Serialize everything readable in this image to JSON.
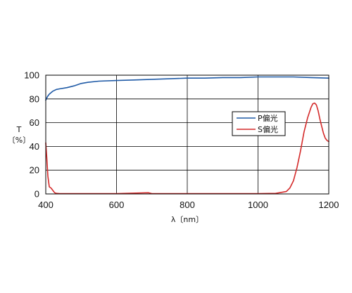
{
  "chart_data": {
    "type": "line",
    "title": "",
    "xlabel": "λ〔nm〕",
    "ylabel": [
      "T",
      "〔%〕"
    ],
    "xlim": [
      400,
      1200
    ],
    "ylim": [
      0,
      100
    ],
    "xticks": [
      400,
      600,
      800,
      1000,
      1200
    ],
    "yticks": [
      0,
      20,
      40,
      60,
      80,
      100
    ],
    "grid": true,
    "legend_position": "right",
    "series": [
      {
        "name": "P偏光",
        "color": "#1f5aa6",
        "x": [
          400,
          405,
          410,
          420,
          430,
          440,
          460,
          480,
          500,
          520,
          550,
          600,
          650,
          700,
          750,
          800,
          850,
          900,
          950,
          1000,
          1050,
          1100,
          1150,
          1200
        ],
        "y": [
          79,
          82,
          84,
          86.5,
          88,
          88.5,
          89.5,
          91,
          93,
          94,
          95,
          95.5,
          96,
          96.5,
          97,
          97.5,
          97.5,
          98,
          98,
          98.5,
          98.5,
          98.5,
          98,
          97.5
        ]
      },
      {
        "name": "S偏光",
        "color": "#d42a2a",
        "x": [
          400,
          403,
          406,
          410,
          415,
          420,
          425,
          430,
          440,
          450,
          500,
          600,
          690,
          700,
          800,
          900,
          1000,
          1050,
          1080,
          1090,
          1100,
          1110,
          1120,
          1130,
          1140,
          1150,
          1155,
          1160,
          1165,
          1170,
          1175,
          1180,
          1185,
          1190,
          1195,
          1200
        ],
        "y": [
          43,
          30,
          15,
          6,
          5,
          3,
          1,
          0.5,
          0.3,
          0.3,
          0.3,
          0.3,
          1,
          0.3,
          0.3,
          0.3,
          0.3,
          0.5,
          2,
          5,
          11,
          22,
          36,
          52,
          64,
          73,
          76,
          76.5,
          75,
          70,
          63,
          57,
          51,
          47,
          45,
          44
        ]
      }
    ]
  }
}
